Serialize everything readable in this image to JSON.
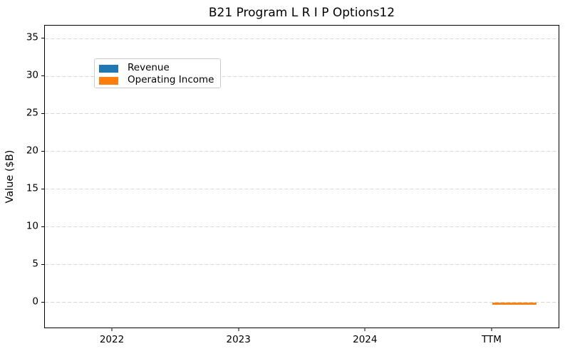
{
  "chart_data": {
    "type": "bar",
    "title": "B21 Program L R I P Options12",
    "xlabel": "",
    "ylabel": "Value ($B)",
    "categories": [
      "2022",
      "2023",
      "2024",
      "TTM"
    ],
    "series": [
      {
        "name": "Revenue",
        "color": "#1f77b4",
        "values": [
          0,
          0,
          0,
          0
        ]
      },
      {
        "name": "Operating Income",
        "color": "#ff7f0e",
        "values": [
          0,
          0,
          0,
          -0.3
        ]
      }
    ],
    "yticks": [
      0,
      5,
      10,
      15,
      20,
      25,
      30,
      35
    ],
    "ylim": [
      -3.5,
      36.7
    ],
    "bar_width": 0.35,
    "grid": "horizontal-dashed",
    "grid_color": "#d8d8d8",
    "legend_position": "upper-left",
    "spine_color": "#000000"
  }
}
